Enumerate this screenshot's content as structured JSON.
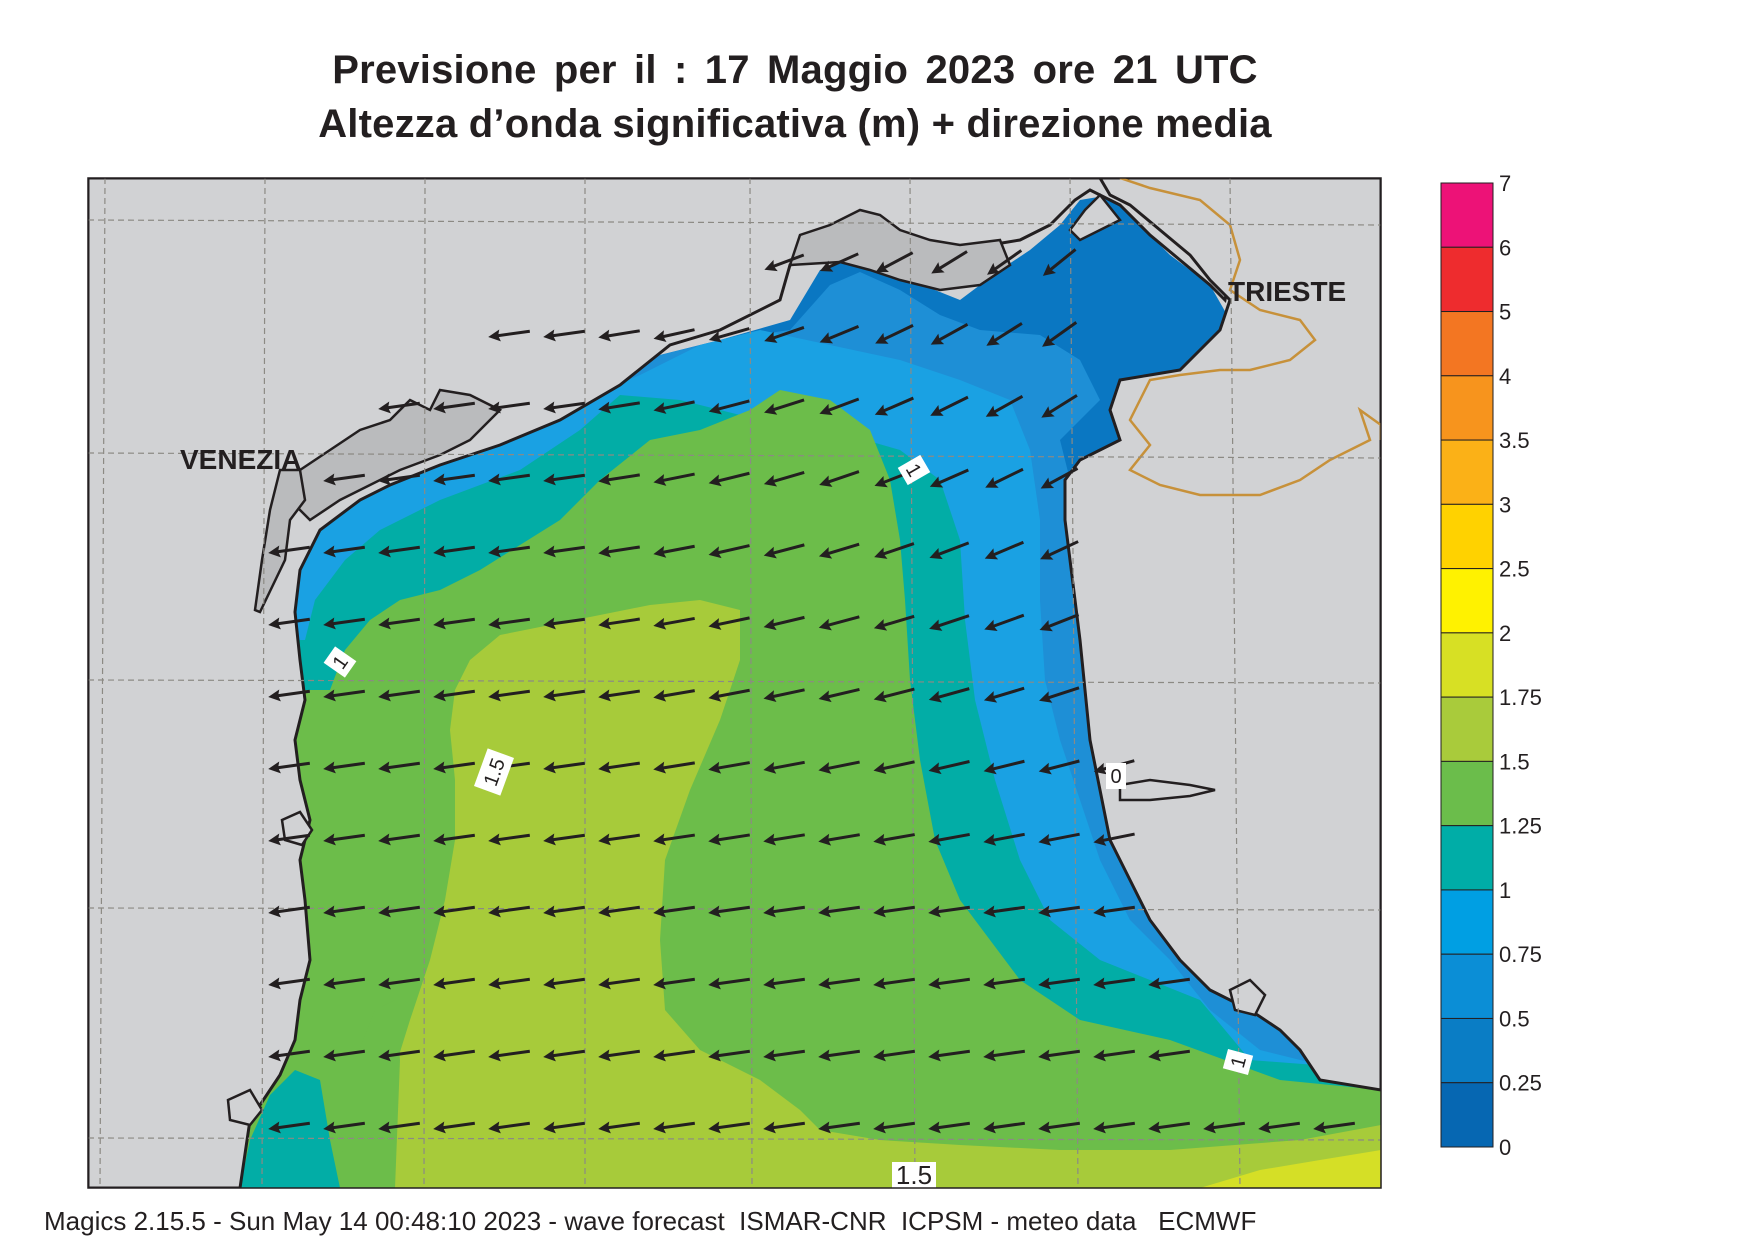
{
  "header": {
    "title_line1": "Previsione per il  :  17   Maggio  2023   ore 21 UTC",
    "title_line2": "Altezza d’onda significativa (m) + direzione media"
  },
  "map": {
    "place_labels": [
      "VENEZIA",
      "TRIESTE"
    ],
    "contour_labels": [
      "1",
      "1",
      "1.5",
      "0",
      "1",
      "1.5"
    ],
    "arrow_direction": "towards west / south-west",
    "colors": {
      "land": "#d1d2d4",
      "sea_025_05": "#0a77c2",
      "sea_05_075": "#1e8fd6",
      "sea_075_1": "#1aa1e3",
      "sea_1_125": "#02ada6",
      "sea_125_15": "#6cbd4a",
      "sea_15_175": "#a7cb3a",
      "sea_175_2": "#d5df26",
      "coast": "#231f20",
      "border": "#c7913a"
    }
  },
  "legend": {
    "levels": [
      "7",
      "6",
      "5",
      "4",
      "3.5",
      "3",
      "2.5",
      "2",
      "1.75",
      "1.5",
      "1.25",
      "1",
      "0.75",
      "0.5",
      "0.25",
      "0"
    ],
    "colors": [
      "#ed1277",
      "#ee2c2e",
      "#f37622",
      "#f7941d",
      "#fbb117",
      "#ffd200",
      "#fff200",
      "#d7e024",
      "#a9cb3b",
      "#6bbd4b",
      "#00ada7",
      "#009fe3",
      "#0b8ed6",
      "#0a7dc5",
      "#0667b2"
    ]
  },
  "footer": {
    "text": "Magics 2.15.5 - Sun May 14 00:48:10 2023 - wave forecast  ISMAR-CNR  ICPSM - meteo data   ECMWF"
  }
}
